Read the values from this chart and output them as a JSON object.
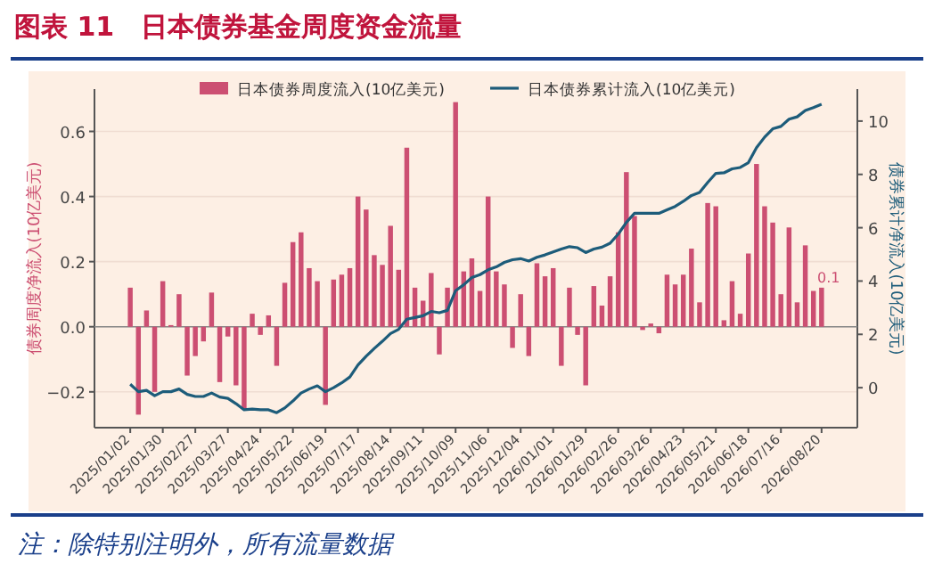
{
  "chart_data": {
    "type": "bar",
    "title": "图表 11　日本债券基金周度资金流量",
    "ylabel": "债券周度净流入(10亿美元)",
    "y2label": "债券累计净流入(10亿美元)",
    "annotations": [
      "注：除特别注明外，所有流量数据"
    ],
    "categories": [
      "2025/01/02",
      null,
      null,
      null,
      "2025/01/30",
      null,
      null,
      null,
      "2025/02/27",
      null,
      null,
      null,
      "2025/03/27",
      null,
      null,
      null,
      "2025/04/24",
      null,
      null,
      null,
      "2025/05/22",
      null,
      null,
      null,
      "2025/06/19",
      null,
      null,
      null,
      "2025/07/17",
      null,
      null,
      null,
      "2025/08/14",
      null,
      null,
      null,
      "2025/09/11",
      null,
      null,
      null,
      "2025/10/09",
      null,
      null,
      null,
      "2025/11/06",
      null,
      null,
      null,
      "2025/12/04",
      null,
      null,
      null,
      "2026/01/01",
      null,
      null,
      null,
      "2026/01/29",
      null,
      null,
      null,
      "2026/02/26",
      null,
      null,
      null,
      "2026/03/26",
      null,
      null,
      null,
      "2026/04/23",
      null,
      null,
      null,
      "2026/05/21",
      null,
      null,
      null,
      "2026/06/18",
      null,
      null,
      null,
      "2026/07/16",
      null,
      null,
      null,
      null,
      "2026/08/20"
    ],
    "series": [
      {
        "name": "日本债券周度流入(10亿美元)",
        "color": "#cc4f72",
        "values": [
          0.12,
          -0.27,
          0.05,
          -0.2,
          0.14,
          0.005,
          0.1,
          -0.15,
          -0.09,
          -0.045,
          0.105,
          -0.17,
          -0.03,
          -0.18,
          -0.255,
          0.04,
          -0.025,
          0.035,
          -0.12,
          0.135,
          0.26,
          0.29,
          0.18,
          0.14,
          -0.24,
          0.145,
          0.16,
          0.18,
          0.4,
          0.36,
          0.22,
          0.19,
          0.31,
          0.175,
          0.55,
          0.12,
          0.08,
          0.165,
          -0.085,
          0.12,
          0.69,
          0.17,
          0.21,
          0.11,
          0.4,
          0.17,
          0.13,
          -0.065,
          0.1,
          -0.09,
          0.195,
          0.155,
          0.18,
          -0.12,
          0.12,
          -0.025,
          -0.18,
          0.125,
          0.065,
          0.155,
          0.29,
          0.475,
          0.34,
          -0.01,
          0.01,
          -0.02,
          0.16,
          0.13,
          0.16,
          0.24,
          0.075,
          0.38,
          0.37,
          0.02,
          0.14,
          0.04,
          0.225,
          0.5,
          0.37,
          0.32,
          0.1,
          0.305,
          0.075,
          0.25,
          0.11,
          0.12
        ],
        "value_labels": [
          null,
          null,
          null,
          null,
          null,
          null,
          null,
          null,
          null,
          null,
          null,
          null,
          null,
          null,
          null,
          null,
          null,
          null,
          null,
          null,
          null,
          null,
          null,
          null,
          null,
          null,
          null,
          null,
          null,
          null,
          null,
          null,
          null,
          null,
          null,
          null,
          null,
          null,
          null,
          null,
          null,
          null,
          null,
          null,
          null,
          null,
          null,
          null,
          null,
          null,
          null,
          null,
          null,
          null,
          null,
          null,
          null,
          null,
          null,
          null,
          null,
          null,
          null,
          null,
          null,
          null,
          null,
          null,
          null,
          null,
          null,
          null,
          null,
          null,
          null,
          null,
          null,
          null,
          null,
          null,
          null,
          null,
          null,
          null,
          null,
          "0.1"
        ]
      },
      {
        "name": "日本债券累计流入(10亿美元)",
        "type": "line",
        "axis": "y2",
        "color": "#1d5c7a",
        "values": [
          0.13,
          -0.15,
          -0.1,
          -0.3,
          -0.15,
          -0.15,
          -0.05,
          -0.25,
          -0.33,
          -0.33,
          -0.2,
          -0.35,
          -0.4,
          -0.6,
          -0.83,
          -0.8,
          -0.83,
          -0.83,
          -0.94,
          -0.76,
          -0.5,
          -0.2,
          -0.05,
          0.07,
          -0.15,
          0,
          0.18,
          0.4,
          0.85,
          1.18,
          1.47,
          1.74,
          2.03,
          2.19,
          2.57,
          2.63,
          2.7,
          2.86,
          2.81,
          2.9,
          3.64,
          3.86,
          4.13,
          4.24,
          4.42,
          4.53,
          4.7,
          4.8,
          4.84,
          4.75,
          4.89,
          4.98,
          5.09,
          5.2,
          5.29,
          5.25,
          5.07,
          5.2,
          5.27,
          5.42,
          5.76,
          6.2,
          6.54,
          6.54,
          6.54,
          6.54,
          6.67,
          6.8,
          6.99,
          7.21,
          7.32,
          7.7,
          8.04,
          8.06,
          8.21,
          8.26,
          8.44,
          9.0,
          9.4,
          9.71,
          9.8,
          10.07,
          10.16,
          10.4,
          10.51,
          10.63
        ]
      }
    ],
    "ylim": [
      -0.31,
      0.73
    ],
    "yticks": [
      {
        "value": -0.2,
        "label": "−0.2"
      },
      {
        "value": 0,
        "label": "0.0"
      },
      {
        "value": 0.2,
        "label": "0.2"
      },
      {
        "value": 0.4,
        "label": "0.4"
      },
      {
        "value": 0.6,
        "label": "0.6"
      }
    ],
    "y2lim": [
      -1.5,
      11.2
    ],
    "y2ticks": [
      0,
      2,
      4,
      6,
      8,
      10
    ],
    "grid": "y",
    "legend": "top"
  }
}
